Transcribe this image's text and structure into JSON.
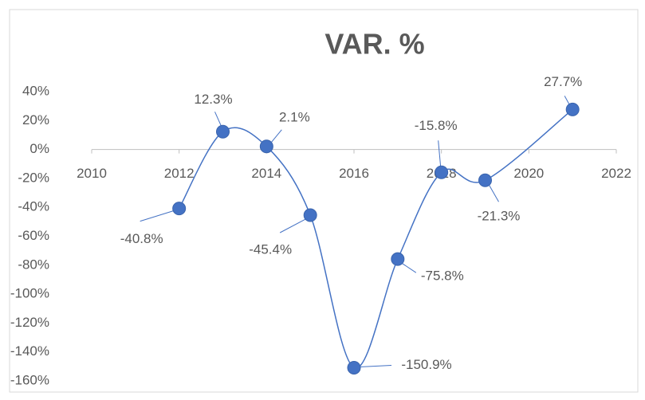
{
  "chart_data": {
    "type": "line",
    "title": "VAR. %",
    "x": [
      2012,
      2013,
      2014,
      2015,
      2016,
      2017,
      2018,
      2019,
      2021
    ],
    "series": [
      {
        "color": "#4472c4",
        "values": [
          -40.8,
          12.3,
          2.1,
          -45.4,
          -150.9,
          -75.8,
          -15.8,
          -21.3,
          27.7
        ],
        "value_labels": [
          "-40.8%",
          "12.3%",
          "2.1%",
          "-45.4%",
          "-150.9%",
          "-75.8%",
          "-15.8%",
          "-21.3%",
          "27.7%"
        ]
      }
    ],
    "xlim": [
      2010,
      2022
    ],
    "xticks": [
      2010,
      2012,
      2014,
      2016,
      2018,
      2020,
      2022
    ],
    "ylim": [
      -160,
      40
    ],
    "yticks": [
      {
        "value": 40,
        "label": "40%"
      },
      {
        "value": 20,
        "label": "20%"
      },
      {
        "value": 0,
        "label": "0%"
      },
      {
        "value": -20,
        "label": "-20%"
      },
      {
        "value": -40,
        "label": "-40%"
      },
      {
        "value": -60,
        "label": "-60%"
      },
      {
        "value": -80,
        "label": "-80%"
      },
      {
        "value": -100,
        "label": "-100%"
      },
      {
        "value": -120,
        "label": "-120%"
      },
      {
        "value": -140,
        "label": "-140%"
      },
      {
        "value": -160,
        "label": "-160%"
      }
    ],
    "smooth": true
  }
}
